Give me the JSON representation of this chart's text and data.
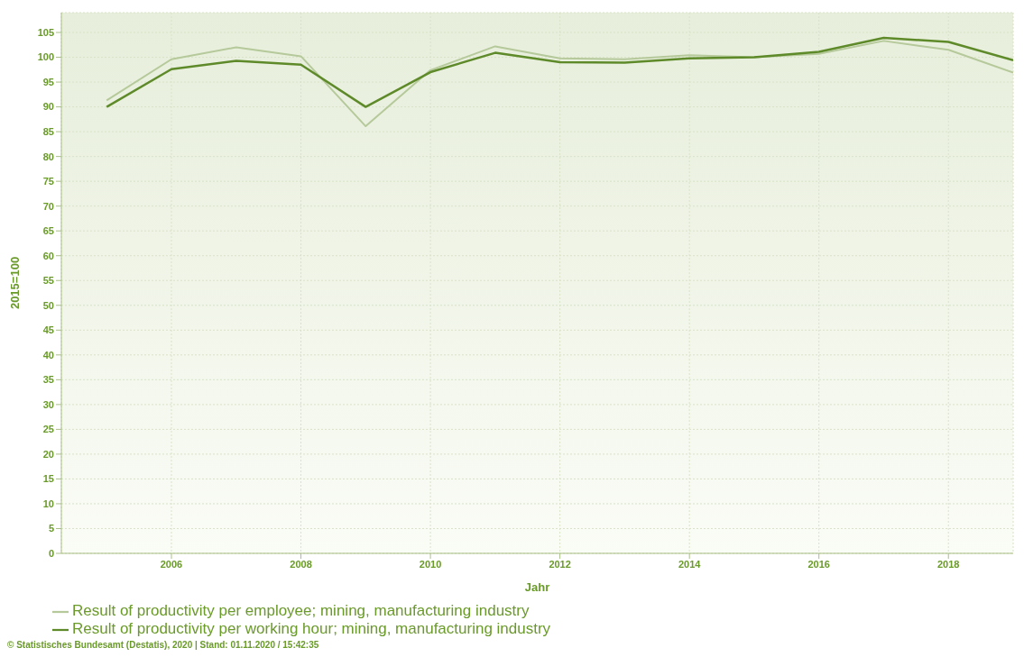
{
  "chart_data": {
    "type": "line",
    "xlabel": "Jahr",
    "ylabel": "2015=100",
    "x": [
      2005,
      2006,
      2007,
      2008,
      2009,
      2010,
      2011,
      2012,
      2013,
      2014,
      2015,
      2016,
      2017,
      2018,
      2019
    ],
    "series": [
      {
        "name": "Result of productivity per employee; mining, manufacturing industry",
        "color": "#b5c99a",
        "values": [
          91.3,
          99.6,
          102.0,
          100.2,
          86.1,
          97.4,
          102.2,
          99.8,
          99.6,
          100.4,
          100,
          100.7,
          103.3,
          101.5,
          96.9
        ]
      },
      {
        "name": "Result of productivity per working hour; mining, manufacturing industry",
        "color": "#5e8a2a",
        "values": [
          90,
          97.6,
          99.3,
          98.5,
          90,
          97.0,
          100.9,
          99.0,
          98.9,
          99.8,
          100,
          101.1,
          103.9,
          103.1,
          99.4
        ]
      }
    ],
    "xlim": [
      2004.3,
      2019
    ],
    "xticks": [
      2006,
      2008,
      2010,
      2012,
      2014,
      2016,
      2018
    ],
    "ylim": [
      0,
      109
    ],
    "yticks": [
      0,
      5,
      10,
      15,
      20,
      25,
      30,
      35,
      40,
      45,
      50,
      55,
      60,
      65,
      70,
      75,
      80,
      85,
      90,
      95,
      100,
      105
    ],
    "grid": true,
    "legend": "bottom",
    "marker": "none",
    "line_style": "solid",
    "annotations": [
      "© Statistisches Bundesamt (Destatis), 2020 | Stand: 01.11.2020 / 15:42:35"
    ]
  }
}
